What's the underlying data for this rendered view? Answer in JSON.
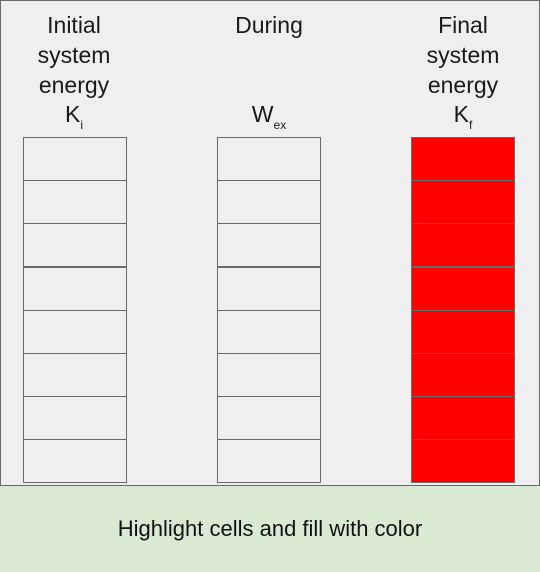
{
  "columns": [
    {
      "header": "Initial\nsystem\nenergy",
      "symbol_main": "K",
      "symbol_sub": "i",
      "filled_cells": 0,
      "cell_count": 8
    },
    {
      "header": "During",
      "symbol_main": "W",
      "symbol_sub": "ex",
      "filled_cells": 0,
      "cell_count": 8
    },
    {
      "header": "Final\nsystem\nenergy",
      "symbol_main": "K",
      "symbol_sub": "f",
      "filled_cells": 8,
      "cell_count": 8
    }
  ],
  "colors": {
    "empty_cell": "#efefef",
    "filled_cell": "#ff0000"
  },
  "instruction": "Highlight cells and fill with color"
}
